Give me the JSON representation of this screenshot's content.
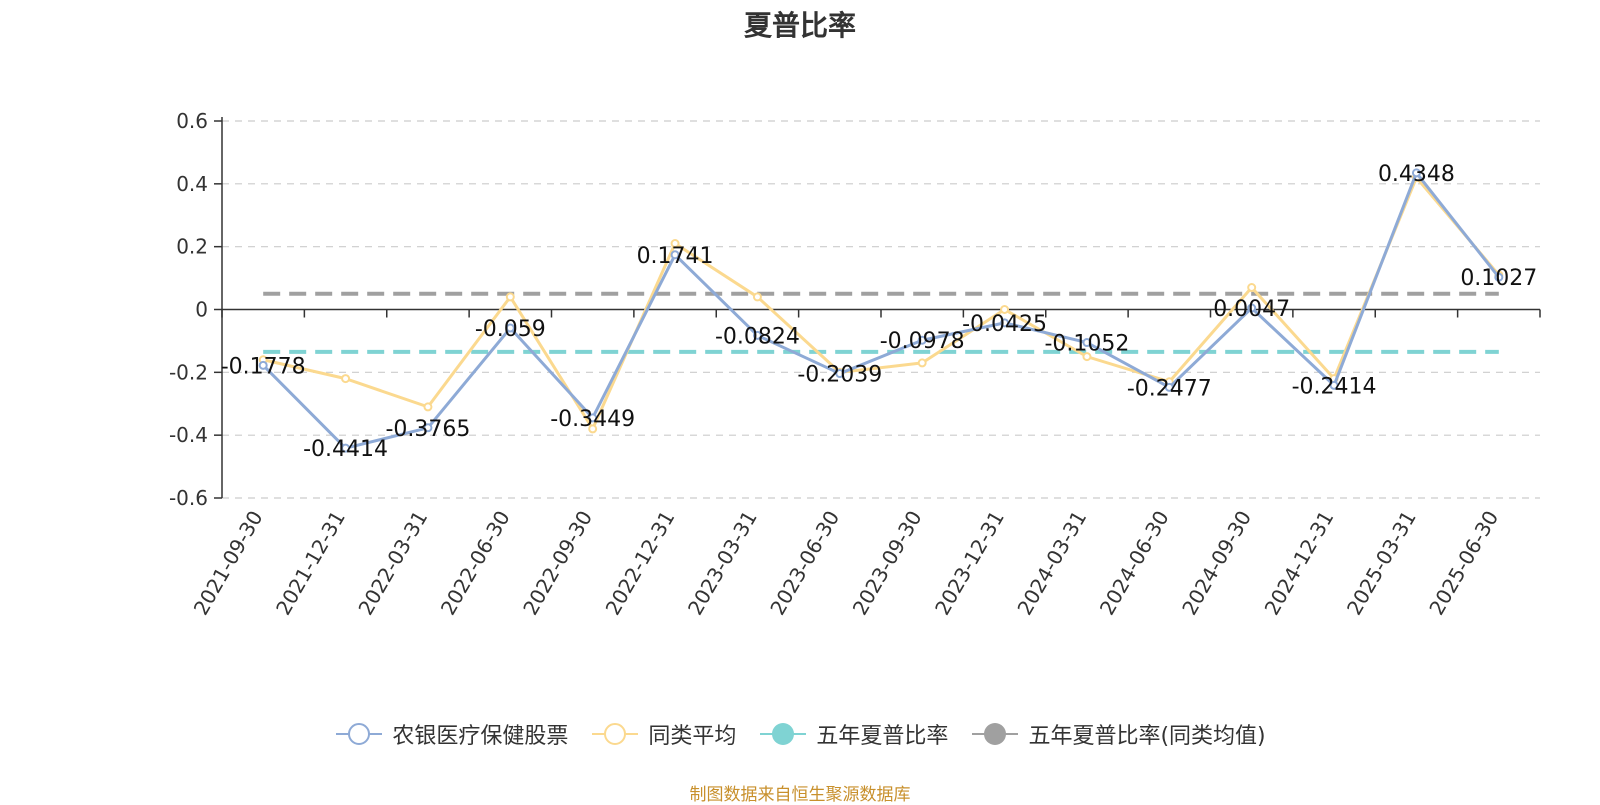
{
  "chart_data": {
    "type": "line",
    "title": "夏普比率",
    "categories": [
      "2021-09-30",
      "2021-12-31",
      "2022-03-31",
      "2022-06-30",
      "2022-09-30",
      "2022-12-31",
      "2023-03-31",
      "2023-06-30",
      "2023-09-30",
      "2023-12-31",
      "2024-03-31",
      "2024-06-30",
      "2024-09-30",
      "2024-12-31",
      "2025-03-31",
      "2025-06-30"
    ],
    "series": [
      {
        "name": "农银医疗保健股票",
        "color": "#8eaad6",
        "values": [
          -0.1778,
          -0.4414,
          -0.3765,
          -0.059,
          -0.3449,
          0.1741,
          -0.0824,
          -0.2039,
          -0.0978,
          -0.0425,
          -0.1052,
          -0.2477,
          0.0047,
          -0.2414,
          0.4348,
          0.1027
        ],
        "labels": [
          "-0.1778",
          "-0.4414",
          "-0.3765",
          "-0.059",
          "-0.3449",
          "0.1741",
          "-0.0824",
          "-0.2039",
          "-0.0978",
          "-0.0425",
          "-0.1052",
          "-0.2477",
          "0.0047",
          "-0.2414",
          "0.4348",
          "0.1027"
        ]
      },
      {
        "name": "同类平均",
        "color": "#fbd98f",
        "values": [
          -0.16,
          -0.22,
          -0.31,
          0.04,
          -0.38,
          0.21,
          0.04,
          -0.2,
          -0.17,
          -0.0,
          -0.15,
          -0.23,
          0.07,
          -0.22,
          0.42,
          0.11
        ]
      }
    ],
    "reference_lines": [
      {
        "name": "五年夏普比率",
        "color": "#7fd3d3",
        "value": -0.135
      },
      {
        "name": "五年夏普比率(同类均值)",
        "color": "#a0a0a0",
        "value": 0.05
      }
    ],
    "y_ticks": [
      "0.6",
      "0.4",
      "0.2",
      "0",
      "-0.2",
      "-0.4",
      "-0.6"
    ],
    "ylim": [
      -0.6,
      0.6
    ],
    "grid": true,
    "legend_position": "bottom"
  },
  "legend": [
    {
      "label": "农银医疗保健股票",
      "color": "#8eaad6",
      "marker": "hollow-circle"
    },
    {
      "label": "同类平均",
      "color": "#fbd98f",
      "marker": "hollow-circle"
    },
    {
      "label": "五年夏普比率",
      "color": "#7fd3d3",
      "marker": "filled-circle"
    },
    {
      "label": "五年夏普比率(同类均值)",
      "color": "#a0a0a0",
      "marker": "filled-circle"
    }
  ],
  "source_note": "制图数据来自恒生聚源数据库"
}
